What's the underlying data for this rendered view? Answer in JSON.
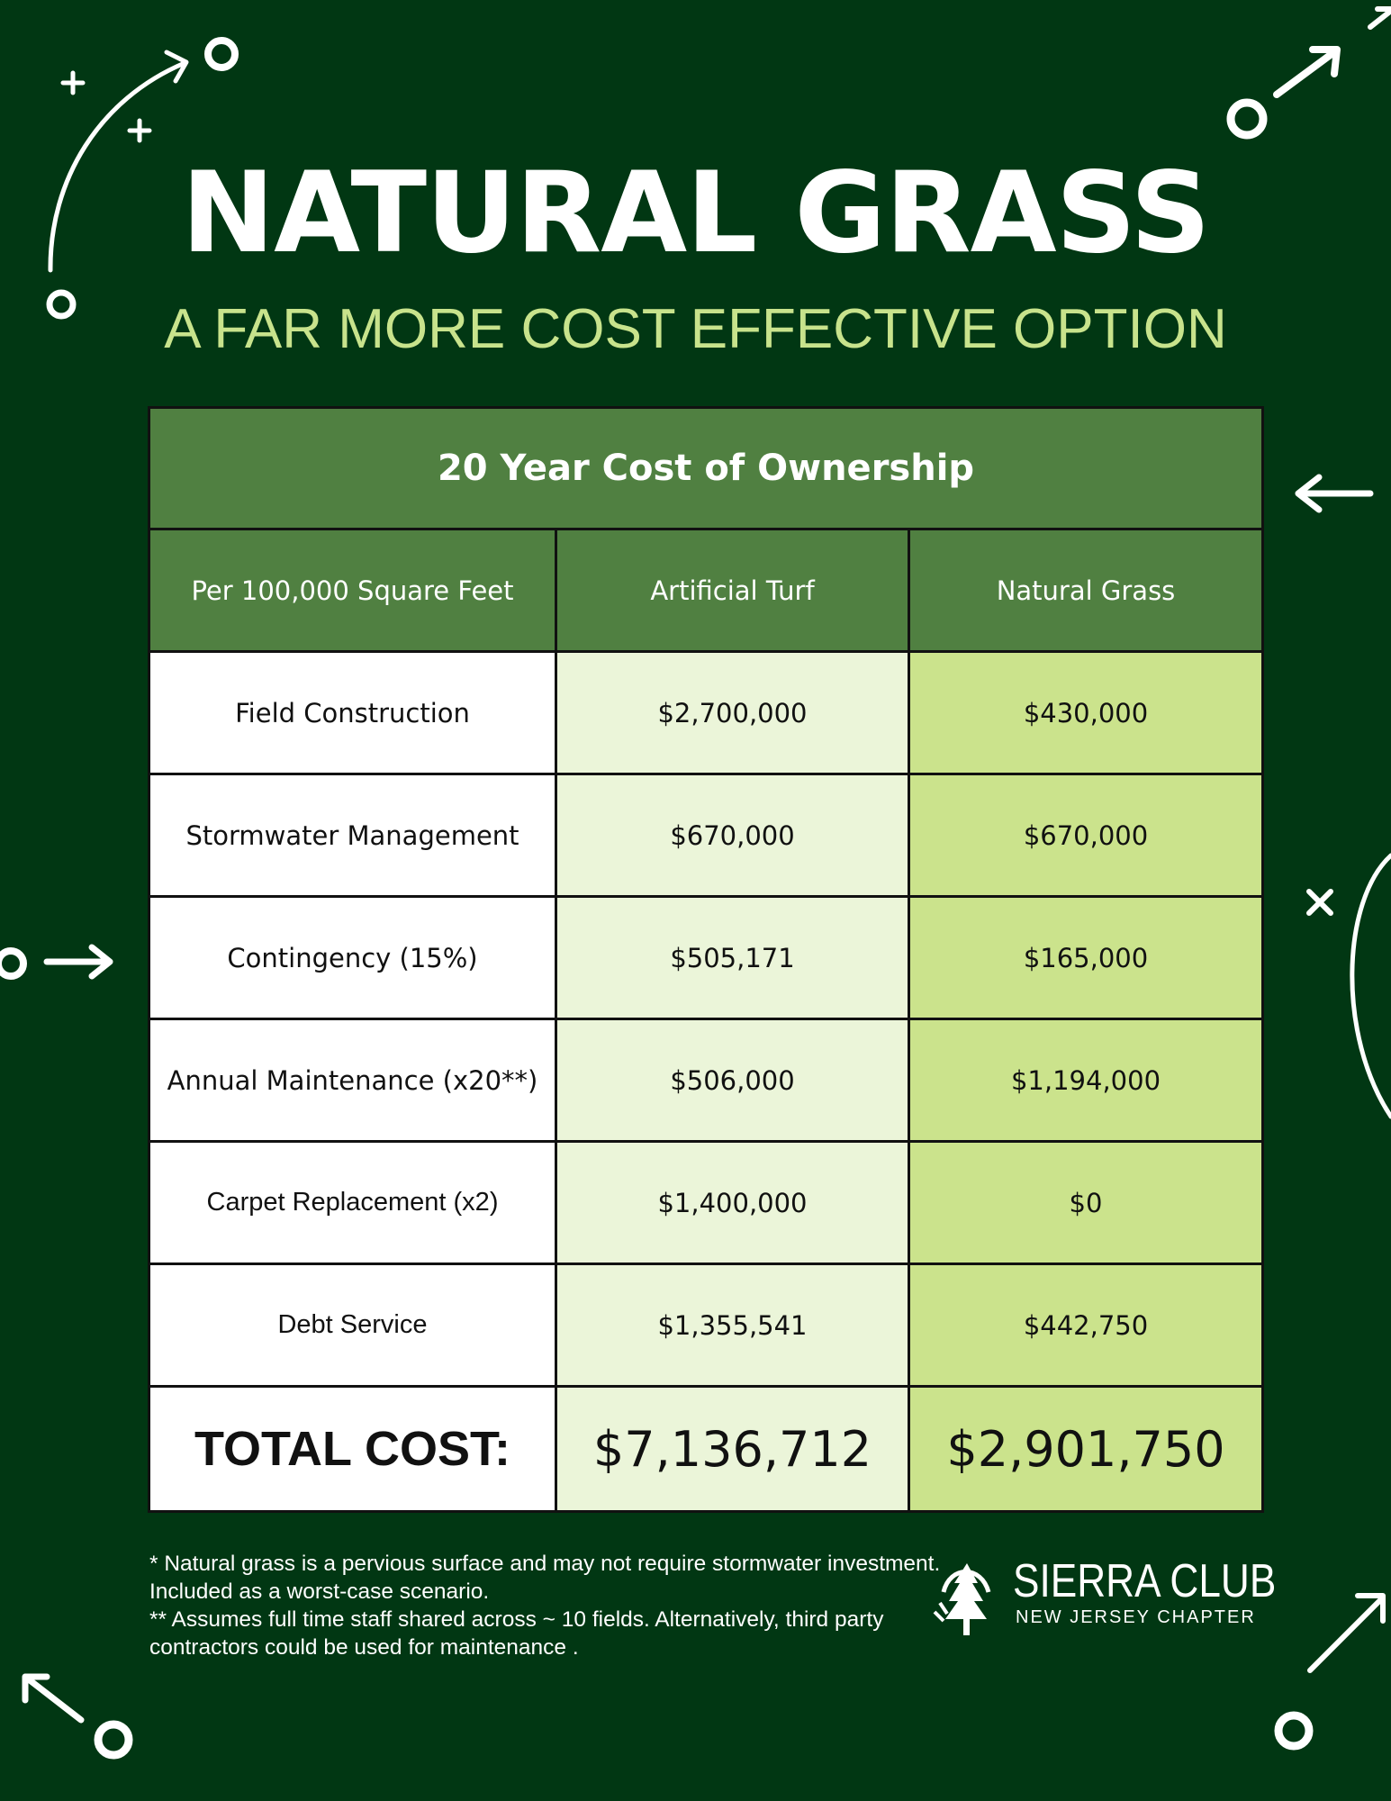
{
  "header": {
    "title": "NATURAL GRASS",
    "subtitle": "A FAR MORE COST EFFECTIVE OPTION"
  },
  "table": {
    "caption": "20 Year Cost of Ownership",
    "columns": [
      "Per 100,000 Square Feet",
      "Artificial Turf",
      "Natural Grass"
    ],
    "rows": [
      {
        "label": "Field Construction",
        "turf": "$2,700,000",
        "grass": "$430,000"
      },
      {
        "label": "Stormwater Management",
        "turf": "$670,000",
        "grass": "$670,000"
      },
      {
        "label": "Contingency (15%)",
        "turf": "$505,171",
        "grass": "$165,000"
      },
      {
        "label": "Annual Maintenance (x20**)",
        "turf": "$506,000",
        "grass": "$1,194,000"
      },
      {
        "label": "Carpet Replacement (x2)",
        "turf": "$1,400,000",
        "grass": "$0"
      },
      {
        "label": "Debt Service",
        "turf": "$1,355,541",
        "grass": "$442,750"
      }
    ],
    "total": {
      "label": "TOTAL COST:",
      "turf": "$7,136,712",
      "grass": "$2,901,750"
    }
  },
  "footnotes": [
    "* Natural grass is a pervious surface and may not require stormwater investment. Included as a worst-case scenario.",
    "** Assumes full time staff shared across ~ 10 fields. Alternatively, third party contractors could be used for maintenance ."
  ],
  "logo": {
    "name": "SIERRA CLUB",
    "chapter": "NEW JERSEY CHAPTER",
    "icon": "sequoia-tree-icon"
  },
  "colors": {
    "background": "#013713",
    "header_green": "#508041",
    "turf_cell": "#ebf5d9",
    "grass_cell": "#cbe38c",
    "subtitle": "#c8e38c"
  }
}
